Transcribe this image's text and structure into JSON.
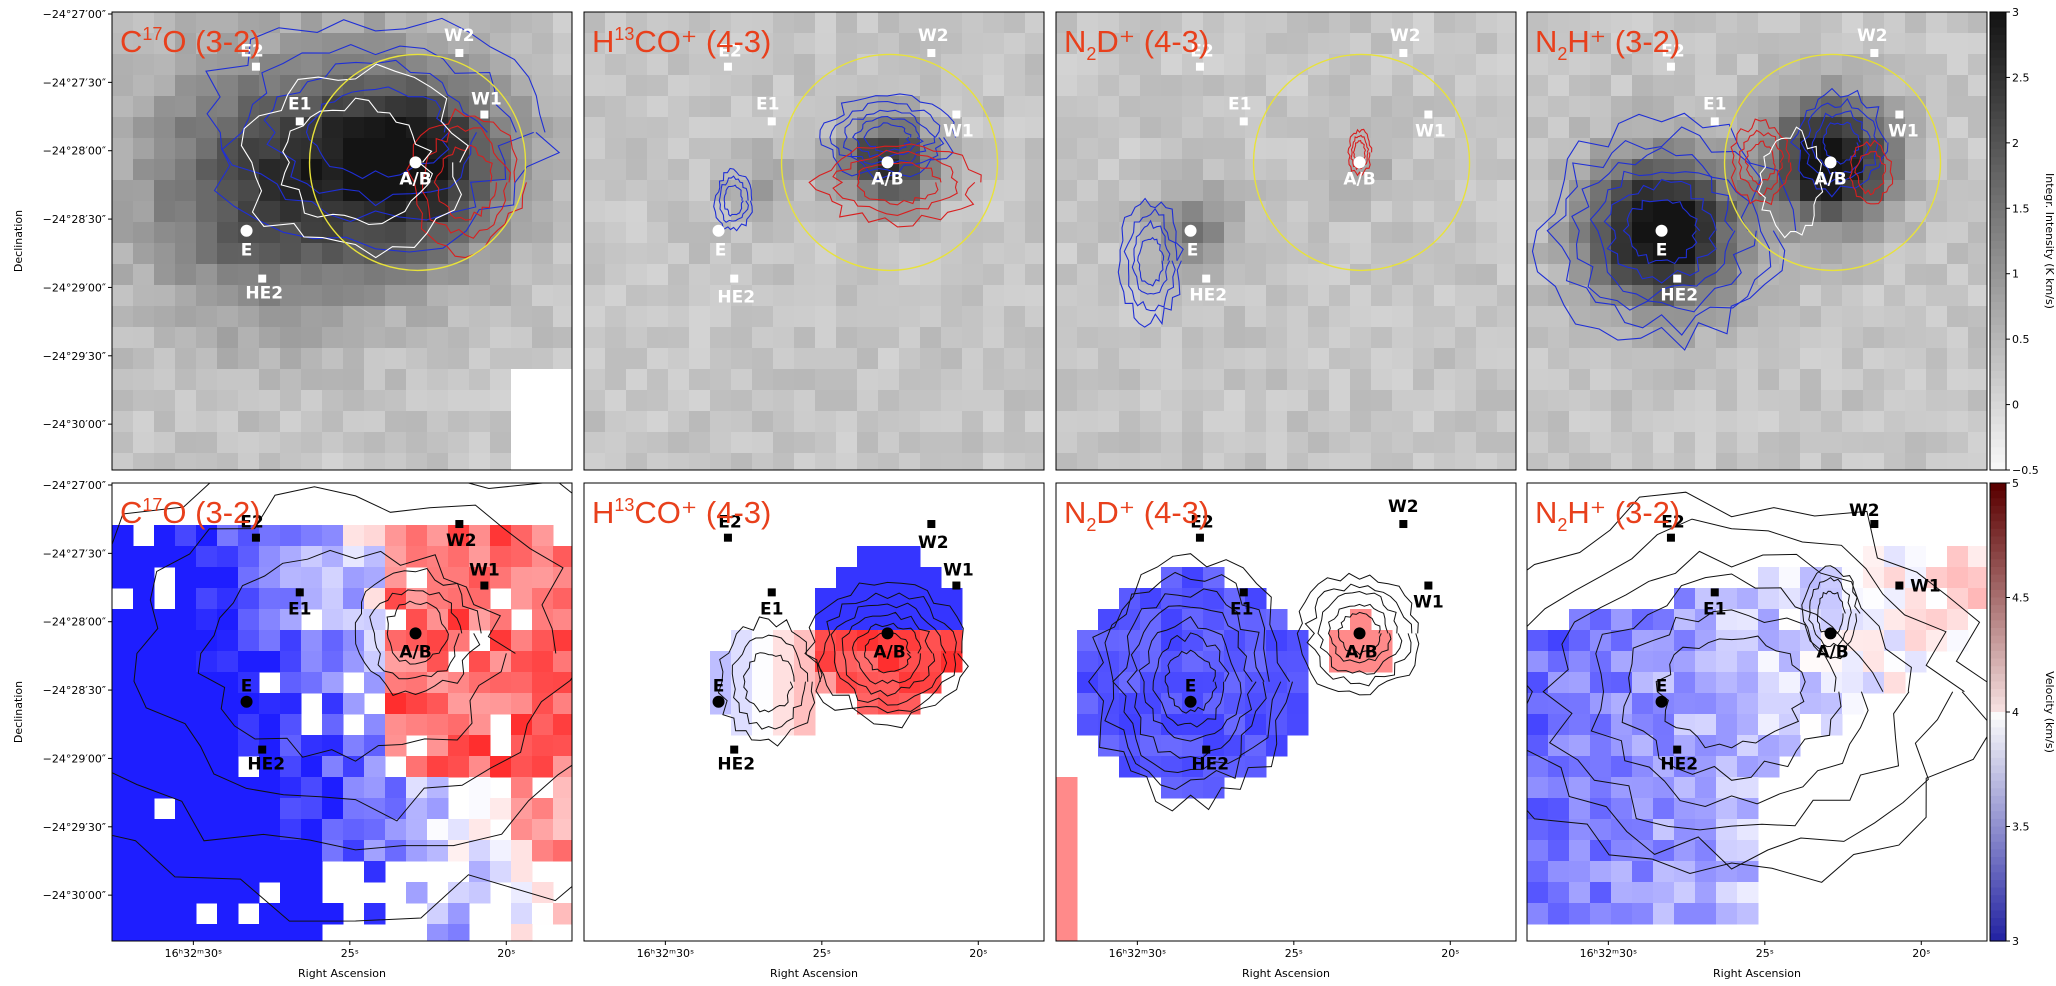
{
  "colors": {
    "title": "#e8401c",
    "contour_blue": "#1f2fd6",
    "contour_red": "#d81f1f",
    "contour_white": "#ffffff",
    "circle": "#e8e23a"
  },
  "chart_data": [
    {
      "type": "heatmap",
      "title_base": "C",
      "title_sup": "17",
      "title_rest": "O (3-2)",
      "row": "moment-0",
      "ylabel": "Declination",
      "xlabel": "",
      "yticks": [
        "−24°27′00″",
        "−24°27′30″",
        "−24°28′00″",
        "−24°28′30″",
        "−24°29′00″",
        "−24°29′30″",
        "−24°30′00″"
      ],
      "xticks": [],
      "sources": [
        {
          "name": "E2",
          "x": 28.0,
          "y": -5.6,
          "marker": "square",
          "dx": -4,
          "dy": -10
        },
        {
          "name": "W2",
          "x": 21.5,
          "y": -5.4,
          "marker": "square",
          "dx": 0,
          "dy": -12
        },
        {
          "name": "E1",
          "x": 26.6,
          "y": -6.4,
          "marker": "square",
          "dx": 0,
          "dy": -12
        },
        {
          "name": "W1",
          "x": 20.7,
          "y": -6.3,
          "marker": "square",
          "dx": 2,
          "dy": -10
        },
        {
          "name": "A/B",
          "x": 22.9,
          "y": -7.0,
          "marker": "circle",
          "dx": 0,
          "dy": 22
        },
        {
          "name": "E",
          "x": 28.3,
          "y": -8.0,
          "marker": "circle",
          "dx": 0,
          "dy": 25
        },
        {
          "name": "HE2",
          "x": 27.8,
          "y": -8.7,
          "marker": "square",
          "dx": 2,
          "dy": 20
        }
      ],
      "circle_center": "A/B",
      "contours": [
        "blue",
        "red",
        "white"
      ],
      "mask_bottom_right": true
    },
    {
      "type": "heatmap",
      "title_base": "H",
      "title_sup": "13",
      "title_rest": "CO⁺ (4-3)",
      "row": "moment-0",
      "ylabel": "",
      "xlabel": "",
      "yticks": [],
      "xticks": [],
      "sources": [
        {
          "name": "E2",
          "x": 28.0,
          "y": -5.6,
          "marker": "square",
          "dx": 2,
          "dy": -10
        },
        {
          "name": "W2",
          "x": 21.5,
          "y": -5.4,
          "marker": "square",
          "dx": 2,
          "dy": -12
        },
        {
          "name": "E1",
          "x": 26.6,
          "y": -6.4,
          "marker": "square",
          "dx": -4,
          "dy": -12
        },
        {
          "name": "W1",
          "x": 20.7,
          "y": -6.3,
          "marker": "square",
          "dx": 2,
          "dy": 22
        },
        {
          "name": "A/B",
          "x": 22.9,
          "y": -7.0,
          "marker": "circle",
          "dx": 0,
          "dy": 22
        },
        {
          "name": "E",
          "x": 28.3,
          "y": -8.0,
          "marker": "circle",
          "dx": 2,
          "dy": 25
        },
        {
          "name": "HE2",
          "x": 27.8,
          "y": -8.7,
          "marker": "square",
          "dx": 2,
          "dy": 24
        }
      ],
      "circle_center": "A/B",
      "contours": [
        "blue",
        "red"
      ]
    },
    {
      "type": "heatmap",
      "title_base": "N",
      "title_sub": "2",
      "title_rest": "D⁺ (4-3)",
      "row": "moment-0",
      "ylabel": "",
      "xlabel": "",
      "yticks": [],
      "xticks": [],
      "sources": [
        {
          "name": "E2",
          "x": 28.0,
          "y": -5.6,
          "marker": "square",
          "dx": 2,
          "dy": -10
        },
        {
          "name": "W2",
          "x": 21.5,
          "y": -5.4,
          "marker": "square",
          "dx": 2,
          "dy": -12
        },
        {
          "name": "E1",
          "x": 26.6,
          "y": -6.4,
          "marker": "square",
          "dx": -4,
          "dy": -12
        },
        {
          "name": "W1",
          "x": 20.7,
          "y": -6.3,
          "marker": "square",
          "dx": 2,
          "dy": 22
        },
        {
          "name": "A/B",
          "x": 22.9,
          "y": -7.0,
          "marker": "circle",
          "dx": 0,
          "dy": 22
        },
        {
          "name": "E",
          "x": 28.3,
          "y": -8.0,
          "marker": "circle",
          "dx": 2,
          "dy": 25
        },
        {
          "name": "HE2",
          "x": 27.8,
          "y": -8.7,
          "marker": "square",
          "dx": 2,
          "dy": 22
        }
      ],
      "circle_center": "A/B",
      "contours": [
        "blue",
        "red"
      ]
    },
    {
      "type": "heatmap",
      "title_base": "N",
      "title_sub": "2",
      "title_rest": "H⁺ (3-2)",
      "row": "moment-0",
      "ylabel": "",
      "xlabel": "",
      "yticks": [],
      "xticks": [],
      "sources": [
        {
          "name": "E2",
          "x": 28.0,
          "y": -5.6,
          "marker": "square",
          "dx": 2,
          "dy": -10
        },
        {
          "name": "W2",
          "x": 21.5,
          "y": -5.4,
          "marker": "square",
          "dx": -2,
          "dy": -12
        },
        {
          "name": "E1",
          "x": 26.6,
          "y": -6.4,
          "marker": "square",
          "dx": 0,
          "dy": -12
        },
        {
          "name": "W1",
          "x": 20.7,
          "y": -6.3,
          "marker": "square",
          "dx": 4,
          "dy": 22
        },
        {
          "name": "A/B",
          "x": 22.9,
          "y": -7.0,
          "marker": "circle",
          "dx": 0,
          "dy": 22
        },
        {
          "name": "E",
          "x": 28.3,
          "y": -8.0,
          "marker": "circle",
          "dx": 0,
          "dy": 25
        },
        {
          "name": "HE2",
          "x": 27.8,
          "y": -8.7,
          "marker": "square",
          "dx": 2,
          "dy": 22
        }
      ],
      "circle_center": "A/B",
      "contours": [
        "blue",
        "red",
        "white"
      ],
      "colorbar": {
        "label": "Integr. Intensity (K km/s)",
        "ticks": [
          "3",
          "2.5",
          "2",
          "1.5",
          "1",
          "0.5",
          "0",
          "−0.5"
        ],
        "values": [
          3,
          2.5,
          2,
          1.5,
          1,
          0.5,
          0,
          -0.5
        ],
        "range": [
          -0.5,
          3
        ],
        "cmap": "grey"
      }
    },
    {
      "type": "heatmap",
      "title_base": "C",
      "title_sup": "17",
      "title_rest": "O (3-2)",
      "row": "velocity",
      "ylabel": "Declination",
      "xlabel": "Right Ascension",
      "yticks": [
        "−24°27′00″",
        "−24°27′30″",
        "−24°28′00″",
        "−24°28′30″",
        "−24°29′00″",
        "−24°29′30″",
        "−24°30′00″"
      ],
      "xticks": [
        "16ʰ32ᵐ30ˢ",
        "25ˢ",
        "20ˢ"
      ],
      "sources": [
        {
          "name": "E2",
          "x": 28.0,
          "y": -5.6,
          "marker": "square",
          "dx": -4,
          "dy": -10
        },
        {
          "name": "W2",
          "x": 21.5,
          "y": -5.4,
          "marker": "square",
          "dx": 2,
          "dy": 22
        },
        {
          "name": "E1",
          "x": 26.6,
          "y": -6.4,
          "marker": "square",
          "dx": 0,
          "dy": 22
        },
        {
          "name": "W1",
          "x": 20.7,
          "y": -6.3,
          "marker": "square",
          "dx": 0,
          "dy": -10
        },
        {
          "name": "A/B",
          "x": 22.9,
          "y": -7.0,
          "marker": "circle",
          "dx": 0,
          "dy": 24
        },
        {
          "name": "E",
          "x": 28.3,
          "y": -8.0,
          "marker": "circle",
          "dx": 0,
          "dy": -10
        },
        {
          "name": "HE2",
          "x": 27.8,
          "y": -8.7,
          "marker": "square",
          "dx": 4,
          "dy": 20
        }
      ],
      "contours": [
        "black"
      ]
    },
    {
      "type": "heatmap",
      "title_base": "H",
      "title_sup": "13",
      "title_rest": "CO⁺ (4-3)",
      "row": "velocity",
      "ylabel": "",
      "xlabel": "Right Ascension",
      "yticks": [],
      "xticks": [
        "16ʰ32ᵐ30ˢ",
        "25ˢ",
        "20ˢ"
      ],
      "sources": [
        {
          "name": "E2",
          "x": 28.0,
          "y": -5.6,
          "marker": "square",
          "dx": 2,
          "dy": -10
        },
        {
          "name": "W2",
          "x": 21.5,
          "y": -5.4,
          "marker": "square",
          "dx": 2,
          "dy": 24
        },
        {
          "name": "E1",
          "x": 26.6,
          "y": -6.4,
          "marker": "square",
          "dx": 0,
          "dy": 22
        },
        {
          "name": "W1",
          "x": 20.7,
          "y": -6.3,
          "marker": "square",
          "dx": 2,
          "dy": -10
        },
        {
          "name": "A/B",
          "x": 22.9,
          "y": -7.0,
          "marker": "circle",
          "dx": 2,
          "dy": 24
        },
        {
          "name": "E",
          "x": 28.3,
          "y": -8.0,
          "marker": "circle",
          "dx": 0,
          "dy": -10
        },
        {
          "name": "HE2",
          "x": 27.8,
          "y": -8.7,
          "marker": "square",
          "dx": 2,
          "dy": 20
        }
      ],
      "contours": [
        "black"
      ]
    },
    {
      "type": "heatmap",
      "title_base": "N",
      "title_sub": "2",
      "title_rest": "D⁺ (4-3)",
      "row": "velocity",
      "ylabel": "",
      "xlabel": "Right Ascension",
      "yticks": [],
      "xticks": [
        "16ʰ32ᵐ30ˢ",
        "25ˢ",
        "20ˢ"
      ],
      "sources": [
        {
          "name": "E2",
          "x": 28.0,
          "y": -5.6,
          "marker": "square",
          "dx": 2,
          "dy": -10
        },
        {
          "name": "W2",
          "x": 21.5,
          "y": -5.4,
          "marker": "square",
          "dx": 0,
          "dy": -12
        },
        {
          "name": "E1",
          "x": 26.6,
          "y": -6.4,
          "marker": "square",
          "dx": -2,
          "dy": 22
        },
        {
          "name": "W1",
          "x": 20.7,
          "y": -6.3,
          "marker": "square",
          "dx": 0,
          "dy": 22
        },
        {
          "name": "A/B",
          "x": 22.9,
          "y": -7.0,
          "marker": "circle",
          "dx": 2,
          "dy": 24
        },
        {
          "name": "E",
          "x": 28.3,
          "y": -8.0,
          "marker": "circle",
          "dx": 0,
          "dy": -10
        },
        {
          "name": "HE2",
          "x": 27.8,
          "y": -8.7,
          "marker": "square",
          "dx": 4,
          "dy": 20
        }
      ],
      "contours": [
        "black"
      ]
    },
    {
      "type": "heatmap",
      "title_base": "N",
      "title_sub": "2",
      "title_rest": "H⁺ (3-2)",
      "row": "velocity",
      "ylabel": "",
      "xlabel": "Right Ascension",
      "yticks": [],
      "xticks": [
        "16ʰ32ᵐ30ˢ",
        "25ˢ",
        "20ˢ"
      ],
      "sources": [
        {
          "name": "E2",
          "x": 28.0,
          "y": -5.6,
          "marker": "square",
          "dx": 2,
          "dy": -10
        },
        {
          "name": "W2",
          "x": 21.5,
          "y": -5.4,
          "marker": "square",
          "dx": -10,
          "dy": -8
        },
        {
          "name": "E1",
          "x": 26.6,
          "y": -6.4,
          "marker": "square",
          "dx": 0,
          "dy": 22
        },
        {
          "name": "W1",
          "x": 20.7,
          "y": -6.3,
          "marker": "square",
          "dx": 26,
          "dy": 6
        },
        {
          "name": "A/B",
          "x": 22.9,
          "y": -7.0,
          "marker": "circle",
          "dx": 2,
          "dy": 24
        },
        {
          "name": "E",
          "x": 28.3,
          "y": -8.0,
          "marker": "circle",
          "dx": 0,
          "dy": -10
        },
        {
          "name": "HE2",
          "x": 27.8,
          "y": -8.7,
          "marker": "square",
          "dx": 2,
          "dy": 20
        }
      ],
      "contours": [
        "black"
      ],
      "colorbar": {
        "label": "Velocity (km/s)",
        "ticks": [
          "5",
          "4.5",
          "4",
          "3.5",
          "3"
        ],
        "values": [
          5,
          4.5,
          4,
          3.5,
          3
        ],
        "range": [
          3,
          5
        ],
        "cmap": "blue-white-red"
      }
    }
  ]
}
